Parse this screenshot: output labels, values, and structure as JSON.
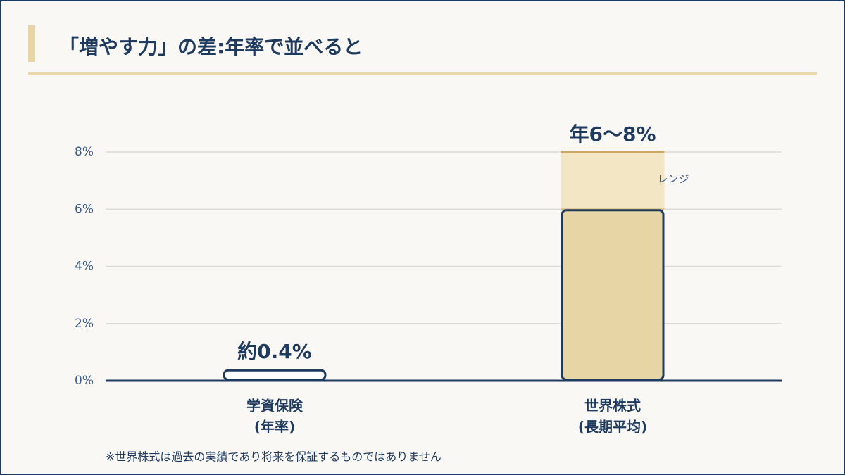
{
  "chart_data": {
    "type": "bar",
    "title": "「増やす力」の差:年率で並べると",
    "categories": [
      [
        "学資保険",
        "(年率)"
      ],
      [
        "世界株式",
        "(長期平均)"
      ]
    ],
    "values": [
      0.4,
      6
    ],
    "value_labels": [
      "約0.4%",
      "年6〜8%"
    ],
    "colors": [
      "#ffffff",
      "#e8d5a6"
    ],
    "range": {
      "name": "レンジ",
      "color": "#f2e6c4",
      "values": [
        null,
        8
      ]
    },
    "ylim": [
      0,
      8
    ],
    "yticks": [
      {
        "value": 0,
        "label": "0%"
      },
      {
        "value": 2,
        "label": "2%"
      },
      {
        "value": 4,
        "label": "4%"
      },
      {
        "value": 6,
        "label": "6%"
      },
      {
        "value": 8,
        "label": "8%"
      }
    ],
    "grid": true,
    "footnote": "※世界株式は過去の実績であり将来を保証するものではありません"
  }
}
